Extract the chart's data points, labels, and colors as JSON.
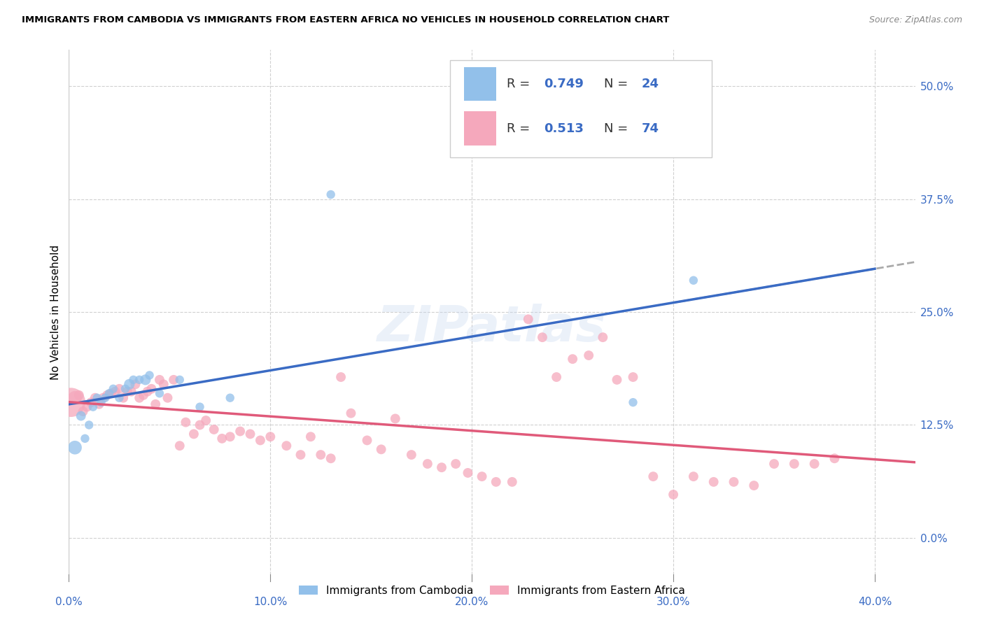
{
  "title": "IMMIGRANTS FROM CAMBODIA VS IMMIGRANTS FROM EASTERN AFRICA NO VEHICLES IN HOUSEHOLD CORRELATION CHART",
  "source": "Source: ZipAtlas.com",
  "xlim": [
    0.0,
    0.42
  ],
  "ylim": [
    -0.04,
    0.54
  ],
  "ylabel": "No Vehicles in Household",
  "cambodia_color": "#92C0EA",
  "eastern_africa_color": "#F5A8BC",
  "cambodia_line_color": "#3A6BC4",
  "eastern_africa_line_color": "#E05A7A",
  "r_cambodia": 0.749,
  "n_cambodia": 24,
  "r_eastern_africa": 0.513,
  "n_eastern_africa": 74,
  "watermark": "ZIPatlas",
  "cambodia_x": [
    0.003,
    0.006,
    0.008,
    0.01,
    0.012,
    0.014,
    0.016,
    0.018,
    0.02,
    0.022,
    0.025,
    0.028,
    0.03,
    0.032,
    0.035,
    0.038,
    0.04,
    0.045,
    0.055,
    0.065,
    0.08,
    0.13,
    0.28,
    0.31
  ],
  "cambodia_y": [
    0.1,
    0.135,
    0.11,
    0.125,
    0.145,
    0.155,
    0.15,
    0.155,
    0.16,
    0.165,
    0.155,
    0.165,
    0.17,
    0.175,
    0.175,
    0.175,
    0.18,
    0.16,
    0.175,
    0.145,
    0.155,
    0.38,
    0.15,
    0.285
  ],
  "cambodia_sizes": [
    200,
    100,
    80,
    80,
    80,
    80,
    80,
    80,
    80,
    80,
    80,
    80,
    120,
    80,
    80,
    120,
    80,
    80,
    80,
    80,
    80,
    80,
    80,
    80
  ],
  "eastern_africa_x": [
    0.001,
    0.003,
    0.005,
    0.007,
    0.009,
    0.011,
    0.013,
    0.015,
    0.017,
    0.019,
    0.021,
    0.023,
    0.025,
    0.027,
    0.029,
    0.031,
    0.033,
    0.035,
    0.037,
    0.039,
    0.041,
    0.043,
    0.045,
    0.047,
    0.049,
    0.052,
    0.055,
    0.058,
    0.062,
    0.065,
    0.068,
    0.072,
    0.076,
    0.08,
    0.085,
    0.09,
    0.095,
    0.1,
    0.108,
    0.115,
    0.12,
    0.125,
    0.13,
    0.135,
    0.14,
    0.148,
    0.155,
    0.162,
    0.17,
    0.178,
    0.185,
    0.192,
    0.198,
    0.205,
    0.212,
    0.22,
    0.228,
    0.235,
    0.242,
    0.25,
    0.258,
    0.265,
    0.272,
    0.28,
    0.29,
    0.3,
    0.31,
    0.32,
    0.33,
    0.34,
    0.35,
    0.36,
    0.37,
    0.38
  ],
  "eastern_africa_y": [
    0.15,
    0.155,
    0.158,
    0.14,
    0.145,
    0.15,
    0.155,
    0.148,
    0.155,
    0.158,
    0.16,
    0.162,
    0.165,
    0.155,
    0.162,
    0.162,
    0.17,
    0.155,
    0.158,
    0.162,
    0.165,
    0.148,
    0.175,
    0.17,
    0.155,
    0.175,
    0.102,
    0.128,
    0.115,
    0.125,
    0.13,
    0.12,
    0.11,
    0.112,
    0.118,
    0.115,
    0.108,
    0.112,
    0.102,
    0.092,
    0.112,
    0.092,
    0.088,
    0.178,
    0.138,
    0.108,
    0.098,
    0.132,
    0.092,
    0.082,
    0.078,
    0.082,
    0.072,
    0.068,
    0.062,
    0.062,
    0.242,
    0.222,
    0.178,
    0.198,
    0.202,
    0.222,
    0.175,
    0.178,
    0.068,
    0.048,
    0.068,
    0.062,
    0.062,
    0.058,
    0.082,
    0.082,
    0.082,
    0.088
  ],
  "eastern_africa_sizes": [
    900,
    200,
    100,
    100,
    100,
    100,
    100,
    100,
    100,
    100,
    100,
    100,
    100,
    100,
    100,
    100,
    100,
    100,
    100,
    100,
    100,
    100,
    100,
    100,
    100,
    100,
    100,
    100,
    100,
    100,
    100,
    100,
    100,
    100,
    100,
    100,
    100,
    100,
    100,
    100,
    100,
    100,
    100,
    100,
    100,
    100,
    100,
    100,
    100,
    100,
    100,
    100,
    100,
    100,
    100,
    100,
    100,
    100,
    100,
    100,
    100,
    100,
    100,
    100,
    100,
    100,
    100,
    100,
    100,
    100,
    100,
    100,
    100,
    100
  ]
}
